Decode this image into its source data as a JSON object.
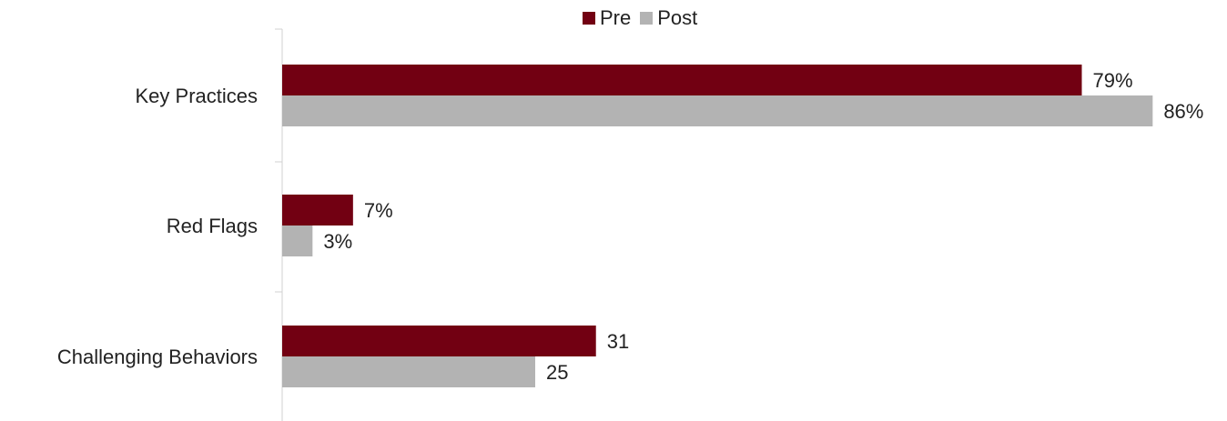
{
  "chart_data": {
    "type": "bar",
    "orientation": "horizontal",
    "categories": [
      "Key Practices",
      "Red Flags",
      "Challenging Behaviors"
    ],
    "series": [
      {
        "name": "Pre",
        "values": [
          79,
          7,
          31
        ],
        "labels": [
          "79%",
          "7%",
          "31"
        ],
        "color": "#720012"
      },
      {
        "name": "Post",
        "values": [
          86,
          3,
          25
        ],
        "labels": [
          "86%",
          "3%",
          "25"
        ],
        "color": "#b3b3b3"
      }
    ],
    "legend_position": "top",
    "grid": false
  }
}
